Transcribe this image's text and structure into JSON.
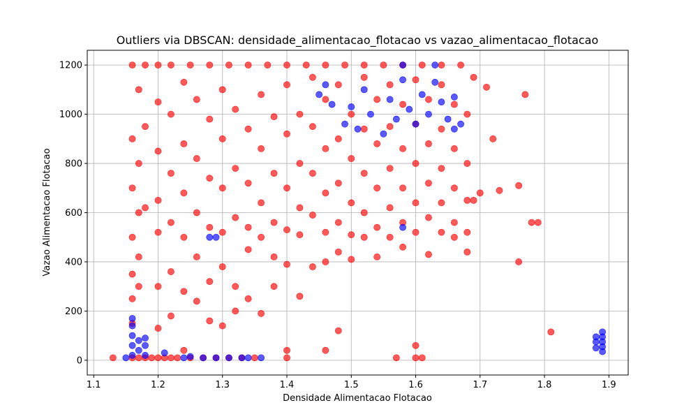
{
  "chart_data": {
    "type": "scatter",
    "title": "Outliers via DBSCAN: densidade_alimentacao_flotacao vs vazao_alimentacao_flotacao",
    "xlabel": "Densidade Alimentacao Flotacao",
    "ylabel": "Vazao Alimentacao Flotacao",
    "xlim": [
      1.09,
      1.93
    ],
    "ylim": [
      -60,
      1260
    ],
    "xticks": [
      "1.1",
      "1.2",
      "1.3",
      "1.4",
      "1.5",
      "1.6",
      "1.7",
      "1.8",
      "1.9"
    ],
    "xtick_values": [
      1.1,
      1.2,
      1.3,
      1.4,
      1.5,
      1.6,
      1.7,
      1.8,
      1.9
    ],
    "yticks": [
      "0",
      "200",
      "400",
      "600",
      "800",
      "1000",
      "1200"
    ],
    "ytick_values": [
      0,
      200,
      400,
      600,
      800,
      1000,
      1200
    ],
    "grid": true,
    "legend": false,
    "series": [
      {
        "color": "#ff0000",
        "points": [
          [
            1.13,
            10
          ],
          [
            1.16,
            10
          ],
          [
            1.17,
            10
          ],
          [
            1.18,
            10
          ],
          [
            1.19,
            10
          ],
          [
            1.2,
            10
          ],
          [
            1.21,
            10
          ],
          [
            1.22,
            10
          ],
          [
            1.23,
            10
          ],
          [
            1.25,
            10
          ],
          [
            1.27,
            10
          ],
          [
            1.29,
            10
          ],
          [
            1.31,
            10
          ],
          [
            1.33,
            10
          ],
          [
            1.35,
            10
          ],
          [
            1.4,
            10
          ],
          [
            1.57,
            10
          ],
          [
            1.6,
            10
          ],
          [
            1.61,
            10
          ],
          [
            1.16,
            1200
          ],
          [
            1.18,
            1200
          ],
          [
            1.2,
            1200
          ],
          [
            1.22,
            1200
          ],
          [
            1.25,
            1200
          ],
          [
            1.28,
            1200
          ],
          [
            1.31,
            1200
          ],
          [
            1.34,
            1200
          ],
          [
            1.37,
            1200
          ],
          [
            1.4,
            1200
          ],
          [
            1.43,
            1200
          ],
          [
            1.46,
            1200
          ],
          [
            1.49,
            1200
          ],
          [
            1.52,
            1200
          ],
          [
            1.55,
            1200
          ],
          [
            1.58,
            1200
          ],
          [
            1.61,
            1200
          ],
          [
            1.64,
            1200
          ],
          [
            1.67,
            1200
          ],
          [
            1.16,
            900
          ],
          [
            1.16,
            700
          ],
          [
            1.16,
            500
          ],
          [
            1.16,
            350
          ],
          [
            1.16,
            250
          ],
          [
            1.16,
            150
          ],
          [
            1.17,
            1100
          ],
          [
            1.17,
            800
          ],
          [
            1.17,
            600
          ],
          [
            1.17,
            420
          ],
          [
            1.17,
            300
          ],
          [
            1.18,
            950
          ],
          [
            1.18,
            620
          ],
          [
            1.2,
            1050
          ],
          [
            1.2,
            850
          ],
          [
            1.2,
            650
          ],
          [
            1.2,
            520
          ],
          [
            1.2,
            300
          ],
          [
            1.2,
            130
          ],
          [
            1.22,
            1000
          ],
          [
            1.22,
            760
          ],
          [
            1.22,
            560
          ],
          [
            1.22,
            360
          ],
          [
            1.22,
            180
          ],
          [
            1.24,
            1130
          ],
          [
            1.24,
            880
          ],
          [
            1.24,
            680
          ],
          [
            1.24,
            500
          ],
          [
            1.24,
            280
          ],
          [
            1.24,
            40
          ],
          [
            1.26,
            1060
          ],
          [
            1.26,
            820
          ],
          [
            1.26,
            600
          ],
          [
            1.26,
            420
          ],
          [
            1.26,
            240
          ],
          [
            1.28,
            980
          ],
          [
            1.28,
            740
          ],
          [
            1.28,
            540
          ],
          [
            1.28,
            320
          ],
          [
            1.28,
            160
          ],
          [
            1.3,
            1100
          ],
          [
            1.3,
            900
          ],
          [
            1.3,
            700
          ],
          [
            1.3,
            520
          ],
          [
            1.3,
            380
          ],
          [
            1.3,
            140
          ],
          [
            1.32,
            1020
          ],
          [
            1.32,
            780
          ],
          [
            1.32,
            580
          ],
          [
            1.32,
            300
          ],
          [
            1.32,
            200
          ],
          [
            1.34,
            940
          ],
          [
            1.34,
            720
          ],
          [
            1.34,
            540
          ],
          [
            1.34,
            450
          ],
          [
            1.34,
            250
          ],
          [
            1.36,
            1080
          ],
          [
            1.36,
            860
          ],
          [
            1.36,
            640
          ],
          [
            1.36,
            500
          ],
          [
            1.36,
            190
          ],
          [
            1.38,
            990
          ],
          [
            1.38,
            760
          ],
          [
            1.38,
            560
          ],
          [
            1.38,
            420
          ],
          [
            1.38,
            300
          ],
          [
            1.4,
            1120
          ],
          [
            1.4,
            920
          ],
          [
            1.4,
            700
          ],
          [
            1.4,
            530
          ],
          [
            1.4,
            390
          ],
          [
            1.4,
            40
          ],
          [
            1.42,
            1000
          ],
          [
            1.42,
            800
          ],
          [
            1.42,
            620
          ],
          [
            1.42,
            510
          ],
          [
            1.42,
            260
          ],
          [
            1.44,
            1150
          ],
          [
            1.44,
            950
          ],
          [
            1.44,
            760
          ],
          [
            1.44,
            590
          ],
          [
            1.44,
            380
          ],
          [
            1.46,
            1060
          ],
          [
            1.46,
            860
          ],
          [
            1.46,
            680
          ],
          [
            1.46,
            520
          ],
          [
            1.46,
            400
          ],
          [
            1.46,
            40
          ],
          [
            1.48,
            1120
          ],
          [
            1.48,
            900
          ],
          [
            1.48,
            720
          ],
          [
            1.48,
            560
          ],
          [
            1.48,
            440
          ],
          [
            1.48,
            120
          ],
          [
            1.5,
            1000
          ],
          [
            1.5,
            820
          ],
          [
            1.5,
            640
          ],
          [
            1.5,
            510
          ],
          [
            1.5,
            410
          ],
          [
            1.52,
            1150
          ],
          [
            1.52,
            940
          ],
          [
            1.52,
            760
          ],
          [
            1.52,
            600
          ],
          [
            1.52,
            500
          ],
          [
            1.54,
            1060
          ],
          [
            1.54,
            880
          ],
          [
            1.54,
            700
          ],
          [
            1.54,
            540
          ],
          [
            1.54,
            420
          ],
          [
            1.56,
            1120
          ],
          [
            1.56,
            950
          ],
          [
            1.56,
            780
          ],
          [
            1.56,
            620
          ],
          [
            1.56,
            500
          ],
          [
            1.58,
            1040
          ],
          [
            1.58,
            860
          ],
          [
            1.58,
            700
          ],
          [
            1.58,
            560
          ],
          [
            1.58,
            460
          ],
          [
            1.6,
            1140
          ],
          [
            1.6,
            960
          ],
          [
            1.6,
            800
          ],
          [
            1.6,
            640
          ],
          [
            1.6,
            520
          ],
          [
            1.6,
            60
          ],
          [
            1.62,
            1060
          ],
          [
            1.62,
            880
          ],
          [
            1.62,
            720
          ],
          [
            1.62,
            580
          ],
          [
            1.62,
            430
          ],
          [
            1.64,
            1120
          ],
          [
            1.64,
            940
          ],
          [
            1.64,
            780
          ],
          [
            1.64,
            640
          ],
          [
            1.64,
            520
          ],
          [
            1.66,
            1040
          ],
          [
            1.66,
            860
          ],
          [
            1.66,
            700
          ],
          [
            1.66,
            560
          ],
          [
            1.66,
            500
          ],
          [
            1.68,
            1000
          ],
          [
            1.68,
            800
          ],
          [
            1.68,
            650
          ],
          [
            1.68,
            520
          ],
          [
            1.68,
            440
          ],
          [
            1.69,
            1150
          ],
          [
            1.69,
            650
          ],
          [
            1.7,
            680
          ],
          [
            1.71,
            1110
          ],
          [
            1.72,
            900
          ],
          [
            1.73,
            690
          ],
          [
            1.76,
            710
          ],
          [
            1.76,
            400
          ],
          [
            1.77,
            1080
          ],
          [
            1.78,
            560
          ],
          [
            1.79,
            560
          ],
          [
            1.81,
            115
          ]
        ]
      },
      {
        "color": "#0000ff",
        "points": [
          [
            1.15,
            10
          ],
          [
            1.16,
            20
          ],
          [
            1.16,
            60
          ],
          [
            1.16,
            100
          ],
          [
            1.16,
            140
          ],
          [
            1.16,
            170
          ],
          [
            1.17,
            40
          ],
          [
            1.17,
            80
          ],
          [
            1.18,
            20
          ],
          [
            1.18,
            60
          ],
          [
            1.18,
            90
          ],
          [
            1.21,
            30
          ],
          [
            1.24,
            10
          ],
          [
            1.25,
            15
          ],
          [
            1.27,
            10
          ],
          [
            1.29,
            10
          ],
          [
            1.31,
            10
          ],
          [
            1.33,
            10
          ],
          [
            1.34,
            10
          ],
          [
            1.36,
            10
          ],
          [
            1.28,
            500
          ],
          [
            1.29,
            500
          ],
          [
            1.45,
            1080
          ],
          [
            1.46,
            1120
          ],
          [
            1.47,
            1040
          ],
          [
            1.49,
            960
          ],
          [
            1.5,
            1030
          ],
          [
            1.51,
            940
          ],
          [
            1.52,
            1100
          ],
          [
            1.53,
            1000
          ],
          [
            1.55,
            920
          ],
          [
            1.56,
            1060
          ],
          [
            1.57,
            980
          ],
          [
            1.58,
            1200
          ],
          [
            1.58,
            1140
          ],
          [
            1.59,
            1020
          ],
          [
            1.6,
            960
          ],
          [
            1.61,
            1080
          ],
          [
            1.62,
            1000
          ],
          [
            1.63,
            1200
          ],
          [
            1.63,
            1130
          ],
          [
            1.64,
            1050
          ],
          [
            1.65,
            980
          ],
          [
            1.66,
            1070
          ],
          [
            1.66,
            940
          ],
          [
            1.67,
            960
          ],
          [
            1.58,
            540
          ],
          [
            1.88,
            50
          ],
          [
            1.88,
            75
          ],
          [
            1.88,
            95
          ],
          [
            1.89,
            35
          ],
          [
            1.89,
            55
          ],
          [
            1.89,
            75
          ],
          [
            1.89,
            95
          ],
          [
            1.89,
            115
          ]
        ]
      }
    ]
  }
}
